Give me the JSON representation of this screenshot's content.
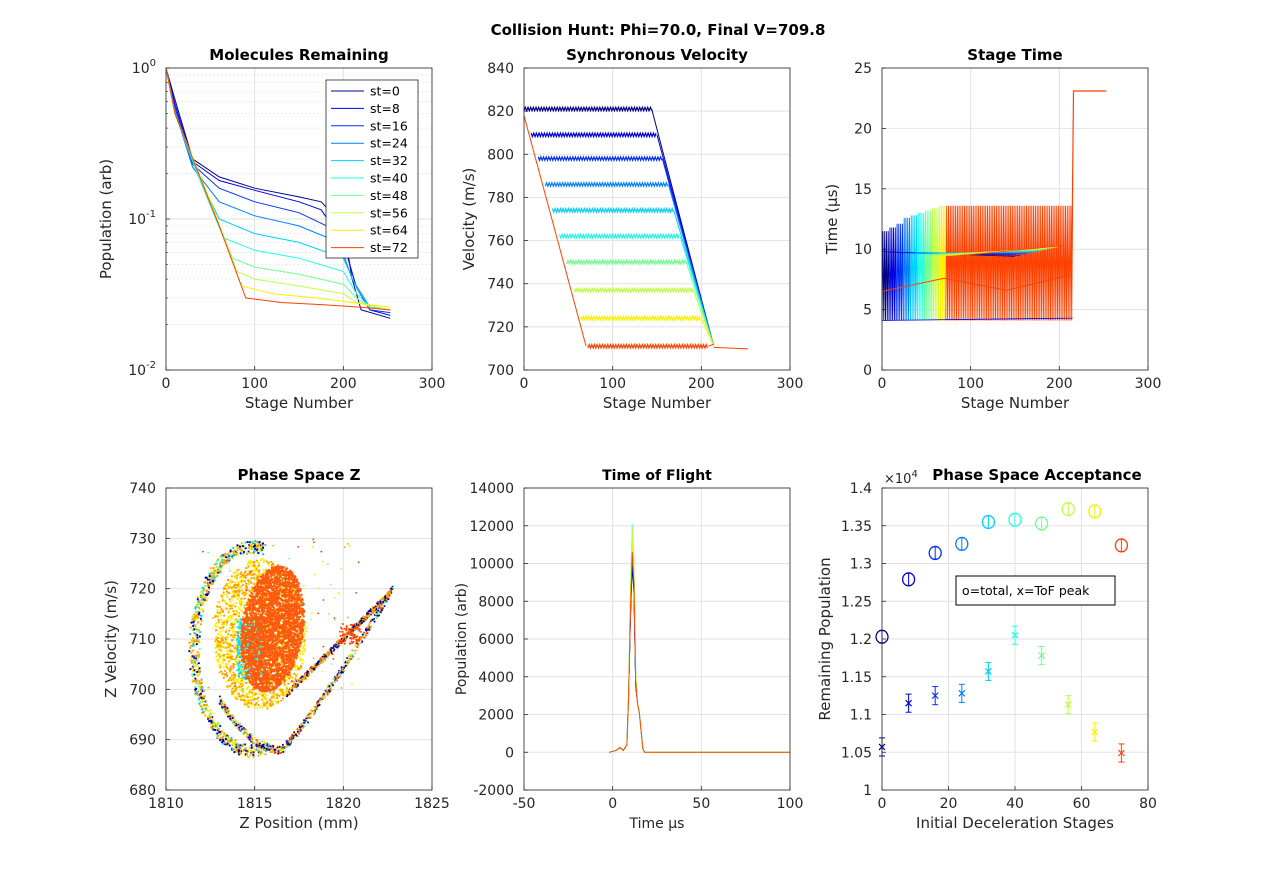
{
  "figure": {
    "suptitle": "Collision Hunt: Phi=70.0, Final V=709.8"
  },
  "stage_labels": [
    "st=0",
    "st=8",
    "st=16",
    "st=24",
    "st=32",
    "st=40",
    "st=48",
    "st=56",
    "st=64",
    "st=72"
  ],
  "stage_colors": [
    "#00008f",
    "#0000df",
    "#0030ff",
    "#0080ff",
    "#00d0ff",
    "#20ffdf",
    "#70ff8f",
    "#bfff40",
    "#ffef00",
    "#ffa000"
  ],
  "chart_data": [
    {
      "type": "line",
      "title": "Molecules Remaining",
      "xlabel": "Stage Number",
      "ylabel": "Population (arb)",
      "xlim": [
        0,
        300
      ],
      "ylim": [
        0.01,
        1
      ],
      "yscale": "log",
      "xticks": [
        "0",
        "100",
        "200",
        "300"
      ],
      "yticks": [
        "10^-2",
        "10^-1",
        "10^0"
      ],
      "grid": true,
      "legend": "top-right",
      "series": [
        {
          "name": "st=0",
          "values": [
            [
              0,
              1
            ],
            [
              10,
              0.62
            ],
            [
              30,
              0.25
            ],
            [
              60,
              0.19
            ],
            [
              100,
              0.16
            ],
            [
              150,
              0.14
            ],
            [
              175,
              0.13
            ],
            [
              200,
              0.09
            ],
            [
              210,
              0.04
            ],
            [
              220,
              0.025
            ],
            [
              253,
              0.022
            ]
          ]
        },
        {
          "name": "st=8",
          "values": [
            [
              0,
              1
            ],
            [
              10,
              0.58
            ],
            [
              30,
              0.24
            ],
            [
              60,
              0.18
            ],
            [
              100,
              0.155
            ],
            [
              150,
              0.13
            ],
            [
              175,
              0.115
            ],
            [
              200,
              0.07
            ],
            [
              215,
              0.035
            ],
            [
              230,
              0.025
            ],
            [
              253,
              0.023
            ]
          ]
        },
        {
          "name": "st=16",
          "values": [
            [
              0,
              1
            ],
            [
              10,
              0.55
            ],
            [
              30,
              0.23
            ],
            [
              60,
              0.16
            ],
            [
              100,
              0.13
            ],
            [
              150,
              0.11
            ],
            [
              190,
              0.085
            ],
            [
              210,
              0.04
            ],
            [
              230,
              0.025
            ],
            [
              253,
              0.024
            ]
          ]
        },
        {
          "name": "st=24",
          "values": [
            [
              0,
              1
            ],
            [
              10,
              0.52
            ],
            [
              30,
              0.22
            ],
            [
              60,
              0.13
            ],
            [
              100,
              0.105
            ],
            [
              150,
              0.09
            ],
            [
              195,
              0.07
            ],
            [
              210,
              0.04
            ],
            [
              230,
              0.026
            ],
            [
              253,
              0.025
            ]
          ]
        },
        {
          "name": "st=32",
          "values": [
            [
              0,
              1
            ],
            [
              10,
              0.5
            ],
            [
              35,
              0.2
            ],
            [
              60,
              0.1
            ],
            [
              100,
              0.08
            ],
            [
              150,
              0.07
            ],
            [
              200,
              0.055
            ],
            [
              215,
              0.035
            ],
            [
              230,
              0.026
            ],
            [
              253,
              0.025
            ]
          ]
        },
        {
          "name": "st=40",
          "values": [
            [
              0,
              1
            ],
            [
              10,
              0.5
            ],
            [
              40,
              0.17
            ],
            [
              65,
              0.075
            ],
            [
              100,
              0.062
            ],
            [
              150,
              0.055
            ],
            [
              200,
              0.045
            ],
            [
              215,
              0.032
            ],
            [
              230,
              0.026
            ],
            [
              253,
              0.025
            ]
          ]
        },
        {
          "name": "st=48",
          "values": [
            [
              0,
              1
            ],
            [
              10,
              0.5
            ],
            [
              45,
              0.15
            ],
            [
              75,
              0.055
            ],
            [
              100,
              0.048
            ],
            [
              150,
              0.043
            ],
            [
              200,
              0.037
            ],
            [
              215,
              0.03
            ],
            [
              230,
              0.026
            ],
            [
              253,
              0.025
            ]
          ]
        },
        {
          "name": "st=56",
          "values": [
            [
              0,
              1
            ],
            [
              10,
              0.5
            ],
            [
              50,
              0.13
            ],
            [
              80,
              0.045
            ],
            [
              100,
              0.04
            ],
            [
              150,
              0.036
            ],
            [
              200,
              0.032
            ],
            [
              215,
              0.028
            ],
            [
              253,
              0.025
            ]
          ]
        },
        {
          "name": "st=64",
          "values": [
            [
              0,
              1
            ],
            [
              10,
              0.5
            ],
            [
              55,
              0.11
            ],
            [
              85,
              0.036
            ],
            [
              120,
              0.032
            ],
            [
              170,
              0.03
            ],
            [
              210,
              0.028
            ],
            [
              253,
              0.026
            ]
          ]
        },
        {
          "name": "st=72",
          "values": [
            [
              0,
              1
            ],
            [
              10,
              0.5
            ],
            [
              60,
              0.09
            ],
            [
              90,
              0.03
            ],
            [
              130,
              0.028
            ],
            [
              180,
              0.027
            ],
            [
              220,
              0.026
            ],
            [
              253,
              0.025
            ]
          ]
        }
      ]
    },
    {
      "type": "line",
      "title": "Synchronous Velocity",
      "xlabel": "Stage Number",
      "ylabel": "Velocity (m/s)",
      "xlim": [
        0,
        300
      ],
      "ylim": [
        700,
        840
      ],
      "xticks": [
        "0",
        "100",
        "200",
        "300"
      ],
      "yticks": [
        "700",
        "720",
        "740",
        "760",
        "780",
        "800",
        "820",
        "840"
      ],
      "grid": true,
      "plateaus": [
        821,
        809,
        798,
        786,
        774,
        762,
        750,
        737,
        724,
        711
      ],
      "plateau_end_stage": [
        144,
        150,
        156,
        163,
        169,
        176,
        183,
        191,
        200,
        208
      ],
      "final_velocity": 709.8,
      "final_stage": 253
    },
    {
      "type": "line",
      "title": "Stage Time",
      "xlabel": "Stage Number",
      "ylabel": "Time (μs)",
      "xlim": [
        0,
        300
      ],
      "ylim": [
        0,
        25
      ],
      "xticks": [
        "0",
        "100",
        "200",
        "300"
      ],
      "yticks": [
        "0",
        "5",
        "10",
        "15",
        "20",
        "25"
      ],
      "grid": true,
      "oscillation_low": [
        1.5,
        4.0
      ],
      "oscillation_high": [
        9.5,
        13.6
      ],
      "tail_value": 23.1,
      "tail_start_stage": 216,
      "tail_end_stage": 253
    },
    {
      "type": "scatter",
      "title": "Phase Space Z",
      "xlabel": "Z Position (mm)",
      "ylabel": "Z Velocity (m/s)",
      "xlim": [
        1810,
        1825
      ],
      "ylim": [
        680,
        740
      ],
      "xticks": [
        "1810",
        "1815",
        "1820",
        "1825"
      ],
      "yticks": [
        "680",
        "690",
        "700",
        "710",
        "720",
        "730",
        "740"
      ],
      "grid": true,
      "core_center": [
        1816,
        712
      ],
      "tail_end": [
        1822.8,
        720
      ]
    },
    {
      "type": "line",
      "title": "Time of Flight",
      "xlabel": "Time μs",
      "ylabel": "Population (arb)",
      "xlim": [
        -50,
        100
      ],
      "ylim": [
        -2000,
        14000
      ],
      "xticks": [
        "-50",
        "0",
        "50",
        "100"
      ],
      "yticks": [
        "-2000",
        "0",
        "2000",
        "4000",
        "6000",
        "8000",
        "10000",
        "12000",
        "14000"
      ],
      "grid": true,
      "series_peaks": [
        9900,
        10200,
        10600,
        11000,
        11300,
        11700,
        12100,
        11800,
        11000,
        10600
      ],
      "peak_time": 11
    },
    {
      "type": "scatter",
      "title": "Phase Space Acceptance",
      "xlabel": "Initial Deceleration Stages",
      "ylabel": "Remaining Population",
      "xlim": [
        0,
        80
      ],
      "ylim": [
        1.0,
        1.4
      ],
      "yscale_factor": "×10^4",
      "xticks": [
        "0",
        "20",
        "40",
        "60",
        "80"
      ],
      "yticks": [
        "1",
        "1.05",
        "1.1",
        "1.15",
        "1.2",
        "1.25",
        "1.3",
        "1.35",
        "1.4"
      ],
      "grid": true,
      "legend": "o=total, x=ToF peak",
      "x": [
        0,
        8,
        16,
        24,
        32,
        40,
        48,
        56,
        64,
        72
      ],
      "total": [
        1.203,
        1.279,
        1.314,
        1.326,
        1.355,
        1.358,
        1.353,
        1.372,
        1.369,
        1.324
      ],
      "tof_peak": [
        1.057,
        1.115,
        1.125,
        1.128,
        1.157,
        1.205,
        1.178,
        1.113,
        1.077,
        1.049
      ]
    }
  ]
}
